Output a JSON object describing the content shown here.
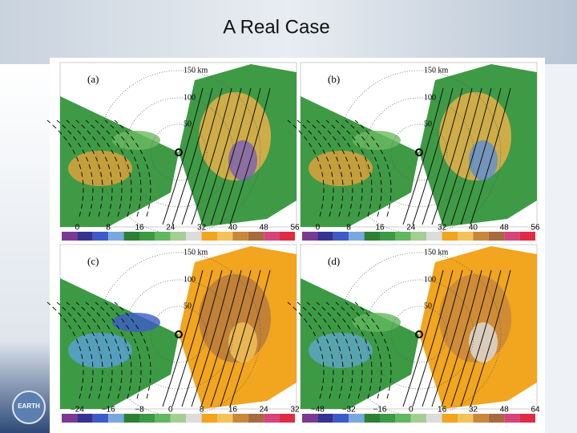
{
  "header": {
    "title": "A Real Case"
  },
  "logo": {
    "text": "EARTH"
  },
  "panels": [
    {
      "label": "(a)",
      "ring_labels": [
        "150 km",
        "100",
        "50"
      ],
      "colorbar_ticks": [
        "0",
        "8",
        "16",
        "24",
        "32",
        "40",
        "48",
        "56"
      ]
    },
    {
      "label": "(b)",
      "ring_labels": [
        "150 km",
        "100",
        "50"
      ],
      "colorbar_ticks": [
        "0",
        "8",
        "16",
        "24",
        "32",
        "40",
        "48",
        "56"
      ]
    },
    {
      "label": "(c)",
      "ring_labels": [
        "150 km",
        "100",
        "50"
      ],
      "colorbar_ticks": [
        "−24",
        "−16",
        "−8",
        "0",
        "8",
        "16",
        "24",
        "32"
      ]
    },
    {
      "label": "(d)",
      "ring_labels": [
        "150 km",
        "100",
        "50"
      ],
      "colorbar_ticks": [
        "−48",
        "−32",
        "−16",
        "0",
        "16",
        "32",
        "48",
        "64"
      ]
    }
  ]
}
